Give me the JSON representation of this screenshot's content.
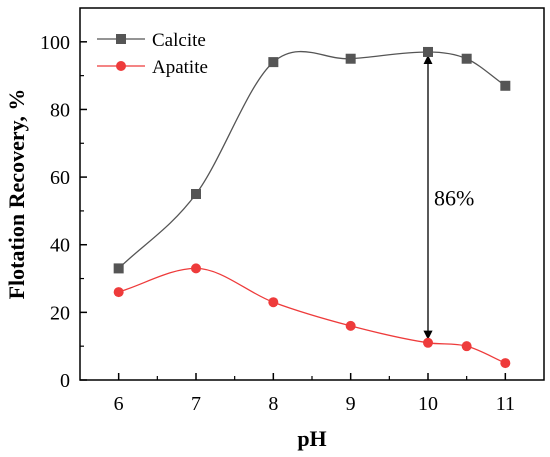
{
  "chart_data": {
    "type": "scatter",
    "xlabel": "pH",
    "ylabel": "Flotation Recovery, %",
    "xlim": [
      5.5,
      11.5
    ],
    "ylim": [
      0,
      110
    ],
    "xticks": [
      6,
      7,
      8,
      9,
      10,
      11
    ],
    "yticks": [
      0,
      20,
      40,
      60,
      80,
      100
    ],
    "grid": false,
    "legend_position": "top-left",
    "series": [
      {
        "name": "Calcite",
        "color": "#555555",
        "line_color": "#555555",
        "marker": "square",
        "x": [
          6,
          7,
          8,
          9,
          10,
          10.5,
          11
        ],
        "y": [
          33,
          55,
          94,
          95,
          97,
          95,
          87
        ]
      },
      {
        "name": "Apatite",
        "color": "#ee3b3b",
        "line_color": "#ee3b3b",
        "marker": "circle",
        "x": [
          6,
          7,
          8,
          9,
          10,
          10.5,
          11
        ],
        "y": [
          26,
          33,
          23,
          16,
          11,
          10,
          5
        ]
      }
    ],
    "annotations": [
      {
        "text": "86%",
        "x": 10,
        "y_from": 11,
        "y_to": 97,
        "type": "double-arrow"
      }
    ]
  }
}
